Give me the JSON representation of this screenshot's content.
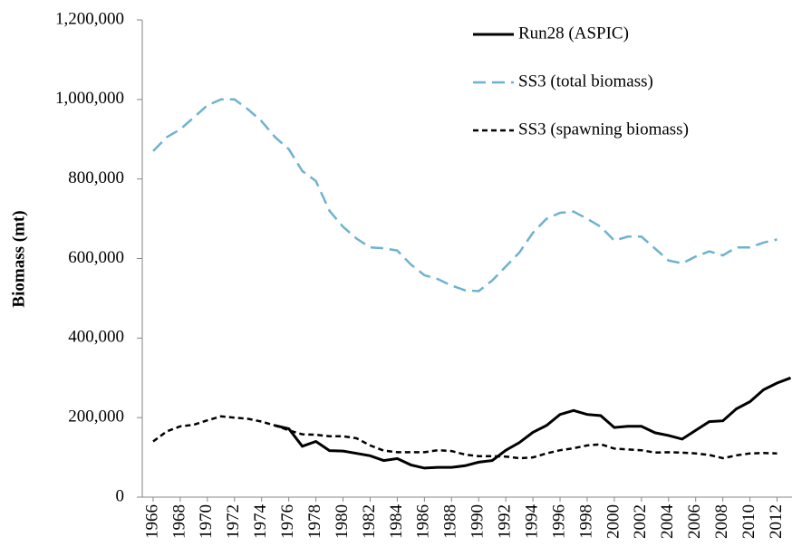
{
  "chart_data": {
    "type": "line",
    "ylabel": "Biomass (mt)",
    "x": [
      1966,
      1967,
      1968,
      1969,
      1970,
      1971,
      1972,
      1973,
      1974,
      1975,
      1976,
      1977,
      1978,
      1979,
      1980,
      1981,
      1982,
      1983,
      1984,
      1985,
      1986,
      1987,
      1988,
      1989,
      1990,
      1991,
      1992,
      1993,
      1994,
      1995,
      1996,
      1997,
      1998,
      1999,
      2000,
      2001,
      2002,
      2003,
      2004,
      2005,
      2006,
      2007,
      2008,
      2009,
      2010,
      2011,
      2012,
      2013
    ],
    "xlim": [
      1965.2,
      2013.1
    ],
    "xticks": [
      1966,
      1968,
      1970,
      1972,
      1974,
      1976,
      1978,
      1980,
      1982,
      1984,
      1986,
      1988,
      1990,
      1992,
      1994,
      1996,
      1998,
      2000,
      2002,
      2004,
      2006,
      2008,
      2010,
      2012
    ],
    "ylim": [
      0,
      1200000
    ],
    "yticks": [
      0,
      {
        "value": 200000,
        "label": "200,000"
      },
      {
        "value": 400000,
        "label": "400,000"
      },
      {
        "value": 600000,
        "label": "600,000"
      },
      {
        "value": 800000,
        "label": "800,000"
      },
      {
        "value": 1000000,
        "label": "1,000,000"
      },
      {
        "value": 1200000,
        "label": "1,200,000"
      }
    ],
    "grid": false,
    "legend": "top-right",
    "series": [
      {
        "name": "Run28 (ASPIC)",
        "color": "#000000",
        "dash": "solid",
        "values": [
          null,
          null,
          null,
          null,
          null,
          null,
          null,
          null,
          null,
          180000,
          172000,
          128000,
          140000,
          117000,
          116000,
          110000,
          104000,
          92000,
          97000,
          81000,
          73000,
          75000,
          75000,
          79000,
          88000,
          92000,
          118000,
          137000,
          163000,
          180000,
          208000,
          218000,
          208000,
          205000,
          175000,
          178000,
          178000,
          162000,
          155000,
          146000,
          168000,
          190000,
          192000,
          222000,
          240000,
          270000,
          287000,
          300000
        ]
      },
      {
        "name": "SS3 (total biomass)",
        "color": "#6fb2cf",
        "dash": "long",
        "values": [
          870000,
          905000,
          925000,
          955000,
          985000,
          1000000,
          1000000,
          975000,
          945000,
          905000,
          875000,
          820000,
          795000,
          720000,
          680000,
          650000,
          628000,
          626000,
          620000,
          585000,
          558000,
          548000,
          532000,
          520000,
          518000,
          545000,
          580000,
          615000,
          665000,
          700000,
          715000,
          718000,
          700000,
          680000,
          645000,
          655000,
          655000,
          625000,
          595000,
          588000,
          605000,
          618000,
          608000,
          628000,
          628000,
          640000,
          648000,
          null
        ]
      },
      {
        "name": "SS3 (spawning biomass)",
        "color": "#000000",
        "dash": "short",
        "values": [
          140000,
          165000,
          178000,
          182000,
          193000,
          203000,
          200000,
          197000,
          190000,
          180000,
          168000,
          158000,
          157000,
          153000,
          153000,
          148000,
          130000,
          117000,
          113000,
          113000,
          113000,
          118000,
          116000,
          107000,
          103000,
          103000,
          102000,
          98000,
          100000,
          110000,
          118000,
          123000,
          130000,
          133000,
          122000,
          120000,
          118000,
          112000,
          113000,
          112000,
          110000,
          106000,
          98000,
          105000,
          110000,
          111000,
          110000,
          null
        ]
      }
    ]
  }
}
